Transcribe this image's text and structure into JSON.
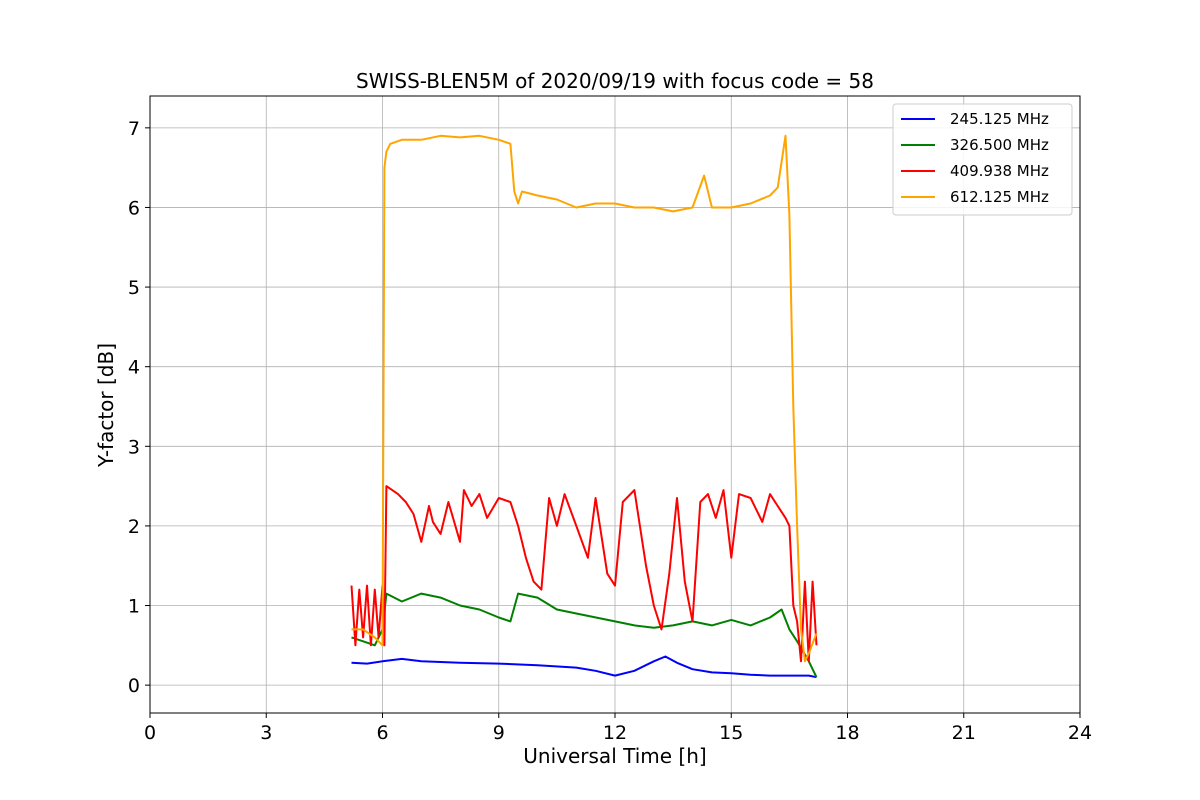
{
  "chart_data": {
    "type": "line",
    "title": "SWISS-BLEN5M of 2020/09/19 with focus code = 58",
    "xlabel": "Universal Time [h]",
    "ylabel": "Y-factor [dB]",
    "xlim": [
      0,
      24
    ],
    "ylim": [
      -0.35,
      7.4
    ],
    "xticks": [
      0,
      3,
      6,
      9,
      12,
      15,
      18,
      21,
      24
    ],
    "yticks": [
      0,
      1,
      2,
      3,
      4,
      5,
      6,
      7
    ],
    "grid": true,
    "legend_position": "top-right",
    "series": [
      {
        "name": "245.125 MHz",
        "color": "#0000ff",
        "x": [
          5.2,
          5.6,
          6.0,
          6.5,
          7.0,
          8.0,
          9.0,
          10.0,
          11.0,
          11.5,
          12.0,
          12.5,
          13.0,
          13.3,
          13.6,
          14.0,
          14.5,
          15.0,
          15.5,
          16.0,
          16.5,
          17.0,
          17.2
        ],
        "y": [
          0.28,
          0.27,
          0.3,
          0.33,
          0.3,
          0.28,
          0.27,
          0.25,
          0.22,
          0.18,
          0.12,
          0.18,
          0.3,
          0.36,
          0.28,
          0.2,
          0.16,
          0.15,
          0.13,
          0.12,
          0.12,
          0.12,
          0.1
        ]
      },
      {
        "name": "326.500 MHz",
        "color": "#008000",
        "x": [
          5.2,
          5.5,
          5.8,
          6.0,
          6.1,
          6.5,
          7.0,
          7.5,
          8.0,
          8.5,
          9.0,
          9.3,
          9.5,
          10.0,
          10.5,
          11.0,
          12.0,
          12.5,
          13.0,
          13.5,
          14.0,
          14.5,
          15.0,
          15.5,
          16.0,
          16.3,
          16.5,
          16.7,
          17.0,
          17.2
        ],
        "y": [
          0.6,
          0.55,
          0.5,
          0.7,
          1.15,
          1.05,
          1.15,
          1.1,
          1.0,
          0.95,
          0.85,
          0.8,
          1.15,
          1.1,
          0.95,
          0.9,
          0.8,
          0.75,
          0.72,
          0.75,
          0.8,
          0.75,
          0.82,
          0.75,
          0.85,
          0.95,
          0.7,
          0.55,
          0.3,
          0.1
        ]
      },
      {
        "name": "409.938 MHz",
        "color": "#ff0000",
        "x": [
          5.2,
          5.3,
          5.4,
          5.5,
          5.6,
          5.7,
          5.8,
          5.9,
          6.0,
          6.05,
          6.1,
          6.4,
          6.6,
          6.8,
          7.0,
          7.2,
          7.3,
          7.5,
          7.7,
          8.0,
          8.1,
          8.3,
          8.5,
          8.7,
          9.0,
          9.3,
          9.5,
          9.7,
          9.9,
          10.1,
          10.3,
          10.5,
          10.7,
          11.0,
          11.3,
          11.5,
          11.8,
          12.0,
          12.2,
          12.5,
          12.8,
          13.0,
          13.2,
          13.4,
          13.6,
          13.8,
          14.0,
          14.2,
          14.4,
          14.6,
          14.8,
          15.0,
          15.2,
          15.5,
          15.8,
          16.0,
          16.2,
          16.4,
          16.5,
          16.6,
          16.7,
          16.8,
          16.9,
          17.0,
          17.1,
          17.2
        ],
        "y": [
          1.25,
          0.5,
          1.2,
          0.6,
          1.25,
          0.5,
          1.2,
          0.6,
          1.25,
          0.5,
          2.5,
          2.4,
          2.3,
          2.15,
          1.8,
          2.25,
          2.05,
          1.9,
          2.3,
          1.8,
          2.45,
          2.25,
          2.4,
          2.1,
          2.35,
          2.3,
          2.0,
          1.6,
          1.3,
          1.2,
          2.35,
          2.0,
          2.4,
          2.0,
          1.6,
          2.35,
          1.4,
          1.25,
          2.3,
          2.45,
          1.5,
          1.0,
          0.7,
          1.4,
          2.35,
          1.3,
          0.8,
          2.3,
          2.4,
          2.1,
          2.45,
          1.6,
          2.4,
          2.35,
          2.05,
          2.4,
          2.25,
          2.1,
          2.0,
          1.0,
          0.8,
          0.3,
          1.3,
          0.3,
          1.3,
          0.5
        ]
      },
      {
        "name": "612.125 MHz",
        "color": "#ffa500",
        "x": [
          5.2,
          5.5,
          5.8,
          6.0,
          6.05,
          6.1,
          6.2,
          6.5,
          7.0,
          7.5,
          8.0,
          8.5,
          9.0,
          9.3,
          9.4,
          9.5,
          9.6,
          10.0,
          10.5,
          11.0,
          11.5,
          12.0,
          12.5,
          13.0,
          13.5,
          14.0,
          14.3,
          14.5,
          15.0,
          15.5,
          16.0,
          16.2,
          16.4,
          16.5,
          16.6,
          16.7,
          16.8,
          16.9,
          17.0,
          17.2
        ],
        "y": [
          0.7,
          0.7,
          0.6,
          0.5,
          6.5,
          6.7,
          6.8,
          6.85,
          6.85,
          6.9,
          6.88,
          6.9,
          6.85,
          6.8,
          6.2,
          6.05,
          6.2,
          6.15,
          6.1,
          6.0,
          6.05,
          6.05,
          6.0,
          6.0,
          5.95,
          6.0,
          6.4,
          6.0,
          6.0,
          6.05,
          6.15,
          6.25,
          6.9,
          5.9,
          3.5,
          2.0,
          0.7,
          0.3,
          0.4,
          0.65
        ]
      }
    ]
  }
}
